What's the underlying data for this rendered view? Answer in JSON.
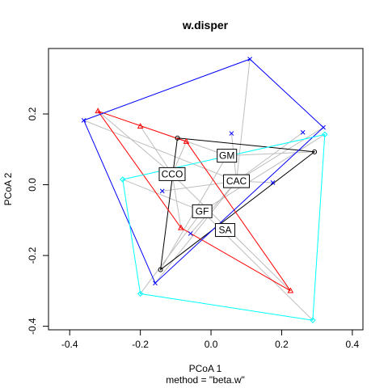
{
  "chart_data": {
    "type": "scatter",
    "title": "w.disper",
    "subtitle": "method = \"beta.w\"",
    "xlabel": "PCoA 1",
    "ylabel": "PCoA 2",
    "xlim": [
      -0.46,
      0.43
    ],
    "ylim": [
      -0.41,
      0.385
    ],
    "xticks": [
      {
        "value": -0.4,
        "label": "-0.4"
      },
      {
        "value": -0.2,
        "label": "-0.2"
      },
      {
        "value": 0.0,
        "label": "0.0"
      },
      {
        "value": 0.2,
        "label": "0.2"
      },
      {
        "value": 0.4,
        "label": "0.4"
      }
    ],
    "yticks": [
      {
        "value": -0.4,
        "label": "-0.4"
      },
      {
        "value": -0.2,
        "label": "-0.2"
      },
      {
        "value": 0.0,
        "label": "0.0"
      },
      {
        "value": 0.2,
        "label": "0.2"
      }
    ],
    "grid": false,
    "legend": "none",
    "spider_color": "#bebebe",
    "groups": [
      {
        "id": "gm",
        "label": "GM",
        "color": "#000000",
        "marker": "circle",
        "centroid": [
          0.045,
          0.082
        ],
        "points": [
          [
            -0.095,
            0.132
          ],
          [
            0.293,
            0.093
          ],
          [
            -0.143,
            -0.24
          ]
        ],
        "hull": [
          [
            -0.095,
            0.132
          ],
          [
            0.293,
            0.093
          ],
          [
            -0.143,
            -0.24
          ]
        ]
      },
      {
        "id": "cco",
        "label": "CCO",
        "color": "#ff0000",
        "marker": "triangle",
        "centroid": [
          -0.11,
          0.03
        ],
        "points": [
          [
            -0.32,
            0.208
          ],
          [
            -0.2,
            0.165
          ],
          [
            -0.07,
            0.122
          ],
          [
            -0.085,
            -0.122
          ],
          [
            0.225,
            -0.3
          ]
        ],
        "hull": [
          [
            -0.32,
            0.208
          ],
          [
            -0.07,
            0.122
          ],
          [
            0.225,
            -0.3
          ],
          [
            -0.085,
            -0.122
          ]
        ]
      },
      {
        "id": "cac",
        "label": "CAC",
        "color": "#0000ff",
        "marker": "cross",
        "centroid": [
          0.072,
          0.01
        ],
        "points": [
          [
            0.11,
            0.355
          ],
          [
            0.318,
            0.162
          ],
          [
            0.26,
            0.148
          ],
          [
            0.058,
            0.145
          ],
          [
            0.175,
            0.006
          ],
          [
            -0.138,
            -0.018
          ],
          [
            -0.058,
            -0.138
          ],
          [
            -0.158,
            -0.278
          ],
          [
            -0.36,
            0.182
          ]
        ],
        "hull": [
          [
            -0.36,
            0.182
          ],
          [
            0.11,
            0.355
          ],
          [
            0.318,
            0.162
          ],
          [
            -0.158,
            -0.278
          ]
        ]
      },
      {
        "id": "gf",
        "label": "GF",
        "color": "#00ffff",
        "marker": "diamond",
        "centroid": [
          -0.025,
          -0.075
        ],
        "points": [
          [
            -0.25,
            0.015
          ],
          [
            0.322,
            0.142
          ],
          [
            0.288,
            -0.383
          ],
          [
            -0.2,
            -0.308
          ]
        ],
        "hull": [
          [
            -0.25,
            0.015
          ],
          [
            0.322,
            0.142
          ],
          [
            0.288,
            -0.383
          ],
          [
            -0.2,
            -0.308
          ]
        ]
      },
      {
        "id": "sa",
        "label": "SA",
        "color": "#000000",
        "marker": "none",
        "centroid": [
          0.04,
          -0.128
        ],
        "points": [],
        "hull": []
      }
    ]
  }
}
